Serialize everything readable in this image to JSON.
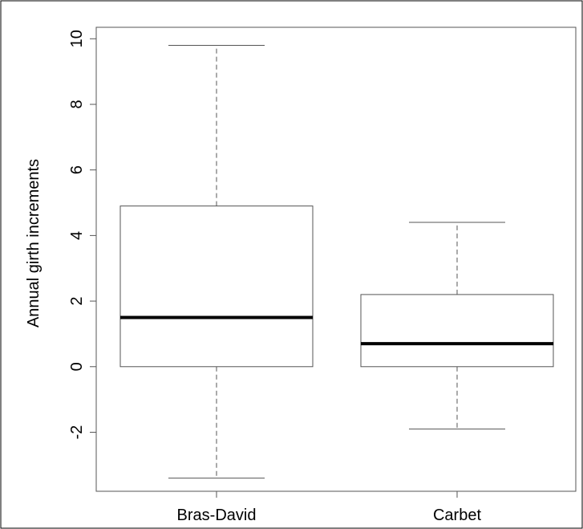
{
  "chart_data": {
    "type": "box",
    "title": "",
    "xlabel": "",
    "ylabel": "Annual girth increments",
    "ylim": [
      -3.8,
      10.35
    ],
    "yticks": [
      -2,
      0,
      2,
      4,
      6,
      8,
      10
    ],
    "grid": false,
    "categories": [
      "Bras-David",
      "Carbet"
    ],
    "boxes": [
      {
        "category": "Bras-David",
        "whisker_low": -3.4,
        "q1": 0.0,
        "median": 1.5,
        "q3": 4.9,
        "whisker_high": 9.8
      },
      {
        "category": "Carbet",
        "whisker_low": -1.9,
        "q1": 0.0,
        "median": 0.7,
        "q3": 2.2,
        "whisker_high": 4.4
      }
    ]
  }
}
